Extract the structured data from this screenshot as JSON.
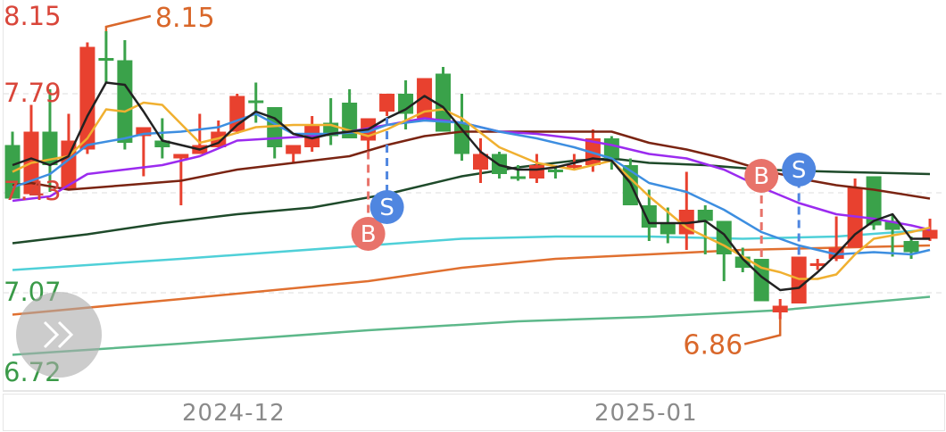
{
  "chart_data": {
    "type": "candlestick",
    "title": "",
    "xlabel": "",
    "ylabel": "",
    "ylim": [
      6.72,
      8.15
    ],
    "y_tick_labels": [
      "8.15",
      "7.79",
      "7.43",
      "7.07",
      "6.72"
    ],
    "x_tick_labels": [
      {
        "label": "2024-12",
        "index": 13
      },
      {
        "label": "2025-01",
        "index": 35
      }
    ],
    "grid": true,
    "colors": {
      "up": "#e8412f",
      "down": "#3aa24a",
      "high_label": "#d9672a",
      "axis_up": "#d9463a",
      "axis_down": "#3a9a48"
    },
    "candles": [
      {
        "o": 7.64,
        "h": 7.7,
        "l": 7.4,
        "c": 7.4
      },
      {
        "o": 7.42,
        "h": 7.82,
        "l": 7.42,
        "c": 7.7
      },
      {
        "o": 7.7,
        "h": 7.89,
        "l": 7.43,
        "c": 7.55
      },
      {
        "o": 7.44,
        "h": 7.78,
        "l": 7.44,
        "c": 7.66
      },
      {
        "o": 7.62,
        "h": 8.1,
        "l": 7.6,
        "c": 8.08
      },
      {
        "o": 8.03,
        "h": 8.15,
        "l": 7.92,
        "c": 8.02
      },
      {
        "o": 8.02,
        "h": 8.11,
        "l": 7.62,
        "c": 7.65
      },
      {
        "o": 7.68,
        "h": 7.72,
        "l": 7.5,
        "c": 7.72
      },
      {
        "o": 7.66,
        "h": 7.76,
        "l": 7.58,
        "c": 7.63
      },
      {
        "o": 7.58,
        "h": 7.6,
        "l": 7.37,
        "c": 7.6
      },
      {
        "o": 7.6,
        "h": 7.78,
        "l": 7.6,
        "c": 7.64
      },
      {
        "o": 7.63,
        "h": 7.75,
        "l": 7.63,
        "c": 7.7
      },
      {
        "o": 7.7,
        "h": 7.87,
        "l": 7.69,
        "c": 7.86
      },
      {
        "o": 7.84,
        "h": 7.92,
        "l": 7.74,
        "c": 7.83
      },
      {
        "o": 7.81,
        "h": 7.81,
        "l": 7.58,
        "c": 7.63
      },
      {
        "o": 7.6,
        "h": 7.64,
        "l": 7.56,
        "c": 7.64
      },
      {
        "o": 7.63,
        "h": 7.77,
        "l": 7.61,
        "c": 7.73
      },
      {
        "o": 7.74,
        "h": 7.85,
        "l": 7.64,
        "c": 7.68
      },
      {
        "o": 7.83,
        "h": 7.89,
        "l": 7.67,
        "c": 7.67
      },
      {
        "o": 7.66,
        "h": 7.76,
        "l": 7.62,
        "c": 7.76
      },
      {
        "o": 7.79,
        "h": 7.87,
        "l": 7.77,
        "c": 7.87
      },
      {
        "o": 7.87,
        "h": 7.93,
        "l": 7.71,
        "c": 7.78
      },
      {
        "o": 7.76,
        "h": 7.94,
        "l": 7.76,
        "c": 7.94
      },
      {
        "o": 7.96,
        "h": 7.99,
        "l": 7.7,
        "c": 7.7
      },
      {
        "o": 7.74,
        "h": 7.87,
        "l": 7.57,
        "c": 7.6
      },
      {
        "o": 7.53,
        "h": 7.67,
        "l": 7.47,
        "c": 7.6
      },
      {
        "o": 7.6,
        "h": 7.61,
        "l": 7.49,
        "c": 7.51
      },
      {
        "o": 7.5,
        "h": 7.55,
        "l": 7.48,
        "c": 7.49
      },
      {
        "o": 7.49,
        "h": 7.6,
        "l": 7.47,
        "c": 7.55
      },
      {
        "o": 7.53,
        "h": 7.55,
        "l": 7.49,
        "c": 7.52
      },
      {
        "o": 7.55,
        "h": 7.6,
        "l": 7.53,
        "c": 7.55
      },
      {
        "o": 7.55,
        "h": 7.71,
        "l": 7.52,
        "c": 7.67
      },
      {
        "o": 7.67,
        "h": 7.68,
        "l": 7.53,
        "c": 7.58
      },
      {
        "o": 7.55,
        "h": 7.58,
        "l": 7.37,
        "c": 7.37
      },
      {
        "o": 7.37,
        "h": 7.44,
        "l": 7.21,
        "c": 7.27
      },
      {
        "o": 7.29,
        "h": 7.36,
        "l": 7.2,
        "c": 7.24
      },
      {
        "o": 7.24,
        "h": 7.52,
        "l": 7.17,
        "c": 7.35
      },
      {
        "o": 7.35,
        "h": 7.37,
        "l": 7.15,
        "c": 7.3
      },
      {
        "o": 7.3,
        "h": 7.3,
        "l": 7.03,
        "c": 7.15
      },
      {
        "o": 7.14,
        "h": 7.18,
        "l": 7.07,
        "c": 7.09
      },
      {
        "o": 7.13,
        "h": 7.13,
        "l": 6.94,
        "c": 6.94
      },
      {
        "o": 6.89,
        "h": 6.95,
        "l": 6.86,
        "c": 6.92
      },
      {
        "o": 6.93,
        "h": 7.14,
        "l": 6.93,
        "c": 7.14
      },
      {
        "o": 7.11,
        "h": 7.13,
        "l": 7.08,
        "c": 7.11
      },
      {
        "o": 7.13,
        "h": 7.32,
        "l": 7.12,
        "c": 7.18
      },
      {
        "o": 7.18,
        "h": 7.49,
        "l": 7.18,
        "c": 7.45
      },
      {
        "o": 7.5,
        "h": 7.5,
        "l": 7.26,
        "c": 7.28
      },
      {
        "o": 7.3,
        "h": 7.33,
        "l": 7.14,
        "c": 7.26
      },
      {
        "o": 7.21,
        "h": 7.23,
        "l": 7.13,
        "c": 7.16
      },
      {
        "o": 7.22,
        "h": 7.31,
        "l": 7.21,
        "c": 7.26
      }
    ],
    "lines": [
      {
        "color": "#222222",
        "points": [
          [
            1,
            7.55
          ],
          [
            2,
            7.58
          ],
          [
            3,
            7.55
          ],
          [
            4,
            7.59
          ],
          [
            5,
            7.77
          ],
          [
            6,
            7.92
          ],
          [
            7,
            7.91
          ],
          [
            8,
            7.79
          ],
          [
            9,
            7.66
          ],
          [
            10,
            7.64
          ],
          [
            11,
            7.62
          ],
          [
            12,
            7.65
          ],
          [
            13,
            7.73
          ],
          [
            14,
            7.79
          ],
          [
            15,
            7.76
          ],
          [
            16,
            7.69
          ],
          [
            17,
            7.67
          ],
          [
            18,
            7.69
          ],
          [
            19,
            7.7
          ],
          [
            20,
            7.71
          ],
          [
            21,
            7.76
          ],
          [
            22,
            7.8
          ],
          [
            23,
            7.86
          ],
          [
            24,
            7.81
          ],
          [
            25,
            7.71
          ],
          [
            26,
            7.61
          ],
          [
            27,
            7.55
          ],
          [
            28,
            7.53
          ],
          [
            29,
            7.53
          ],
          [
            30,
            7.54
          ],
          [
            31,
            7.56
          ],
          [
            32,
            7.58
          ],
          [
            33,
            7.57
          ],
          [
            34,
            7.47
          ],
          [
            35,
            7.29
          ],
          [
            36,
            7.29
          ],
          [
            37,
            7.29
          ],
          [
            38,
            7.3
          ],
          [
            39,
            7.24
          ],
          [
            40,
            7.13
          ],
          [
            41,
            7.05
          ],
          [
            42,
            6.99
          ],
          [
            43,
            7.0
          ],
          [
            44,
            7.07
          ],
          [
            45,
            7.15
          ],
          [
            46,
            7.24
          ],
          [
            47,
            7.3
          ],
          [
            48,
            7.33
          ],
          [
            49,
            7.22
          ],
          [
            50,
            7.22
          ]
        ]
      },
      {
        "color": "#f0b030",
        "points": [
          [
            1,
            7.52
          ],
          [
            2,
            7.56
          ],
          [
            4,
            7.59
          ],
          [
            5,
            7.67
          ],
          [
            6,
            7.8
          ],
          [
            7,
            7.79
          ],
          [
            8,
            7.83
          ],
          [
            9,
            7.82
          ],
          [
            11,
            7.65
          ],
          [
            12,
            7.67
          ],
          [
            14,
            7.72
          ],
          [
            16,
            7.73
          ],
          [
            18,
            7.73
          ],
          [
            20,
            7.68
          ],
          [
            21,
            7.71
          ],
          [
            23,
            7.79
          ],
          [
            24,
            7.8
          ],
          [
            25,
            7.76
          ],
          [
            27,
            7.63
          ],
          [
            29,
            7.56
          ],
          [
            31,
            7.53
          ],
          [
            33,
            7.57
          ],
          [
            35,
            7.41
          ],
          [
            37,
            7.27
          ],
          [
            39,
            7.19
          ],
          [
            41,
            7.09
          ],
          [
            42,
            7.07
          ],
          [
            43,
            7.04
          ],
          [
            44,
            7.04
          ],
          [
            45,
            7.06
          ],
          [
            46,
            7.15
          ],
          [
            47,
            7.22
          ],
          [
            49,
            7.25
          ],
          [
            50,
            7.27
          ]
        ]
      },
      {
        "color": "#3d8ee0",
        "points": [
          [
            1,
            7.45
          ],
          [
            3,
            7.51
          ],
          [
            5,
            7.64
          ],
          [
            7,
            7.67
          ],
          [
            8,
            7.69
          ],
          [
            10,
            7.7
          ],
          [
            12,
            7.72
          ],
          [
            13,
            7.75
          ],
          [
            14,
            7.78
          ],
          [
            16,
            7.69
          ],
          [
            18,
            7.69
          ],
          [
            20,
            7.7
          ],
          [
            21,
            7.73
          ],
          [
            23,
            7.75
          ],
          [
            25,
            7.74
          ],
          [
            27,
            7.7
          ],
          [
            29,
            7.67
          ],
          [
            31,
            7.63
          ],
          [
            33,
            7.58
          ],
          [
            35,
            7.47
          ],
          [
            37,
            7.43
          ],
          [
            39,
            7.35
          ],
          [
            41,
            7.25
          ],
          [
            43,
            7.19
          ],
          [
            45,
            7.15
          ],
          [
            47,
            7.16
          ],
          [
            49,
            7.15
          ],
          [
            50,
            7.17
          ]
        ]
      },
      {
        "color": "#9b2bef",
        "points": [
          [
            1,
            7.39
          ],
          [
            3,
            7.41
          ],
          [
            5,
            7.51
          ],
          [
            7,
            7.53
          ],
          [
            9,
            7.55
          ],
          [
            11,
            7.59
          ],
          [
            13,
            7.66
          ],
          [
            15,
            7.67
          ],
          [
            17,
            7.68
          ],
          [
            19,
            7.7
          ],
          [
            21,
            7.73
          ],
          [
            23,
            7.76
          ],
          [
            25,
            7.74
          ],
          [
            27,
            7.7
          ],
          [
            29,
            7.69
          ],
          [
            31,
            7.67
          ],
          [
            33,
            7.64
          ],
          [
            35,
            7.6
          ],
          [
            37,
            7.58
          ],
          [
            39,
            7.53
          ],
          [
            41,
            7.45
          ],
          [
            43,
            7.38
          ],
          [
            45,
            7.33
          ],
          [
            47,
            7.31
          ],
          [
            49,
            7.28
          ],
          [
            50,
            7.26
          ]
        ]
      },
      {
        "color": "#7a2412",
        "points": [
          [
            1,
            7.46
          ],
          [
            2,
            7.47
          ],
          [
            4,
            7.44
          ],
          [
            7,
            7.46
          ],
          [
            10,
            7.48
          ],
          [
            13,
            7.53
          ],
          [
            16,
            7.56
          ],
          [
            19,
            7.59
          ],
          [
            21,
            7.64
          ],
          [
            23,
            7.68
          ],
          [
            25,
            7.7
          ],
          [
            28,
            7.7
          ],
          [
            31,
            7.7
          ],
          [
            33,
            7.7
          ],
          [
            35,
            7.65
          ],
          [
            37,
            7.62
          ],
          [
            39,
            7.58
          ],
          [
            41,
            7.53
          ],
          [
            43,
            7.49
          ],
          [
            45,
            7.46
          ],
          [
            47,
            7.44
          ],
          [
            50,
            7.4
          ]
        ]
      },
      {
        "color": "#1e4a2a",
        "points": [
          [
            1,
            7.2
          ],
          [
            5,
            7.24
          ],
          [
            9,
            7.29
          ],
          [
            13,
            7.33
          ],
          [
            17,
            7.36
          ],
          [
            21,
            7.42
          ],
          [
            25,
            7.5
          ],
          [
            28,
            7.54
          ],
          [
            31,
            7.57
          ],
          [
            33,
            7.58
          ],
          [
            35,
            7.56
          ],
          [
            38,
            7.55
          ],
          [
            41,
            7.53
          ],
          [
            45,
            7.52
          ],
          [
            50,
            7.51
          ]
        ]
      },
      {
        "color": "#4fd0d8",
        "points": [
          [
            1,
            7.08
          ],
          [
            10,
            7.13
          ],
          [
            20,
            7.19
          ],
          [
            25,
            7.22
          ],
          [
            30,
            7.23
          ],
          [
            35,
            7.23
          ],
          [
            40,
            7.22
          ],
          [
            45,
            7.23
          ],
          [
            50,
            7.26
          ]
        ]
      },
      {
        "color": "#e07030",
        "points": [
          [
            1,
            6.88
          ],
          [
            10,
            6.95
          ],
          [
            20,
            7.03
          ],
          [
            25,
            7.09
          ],
          [
            30,
            7.13
          ],
          [
            35,
            7.15
          ],
          [
            40,
            7.17
          ],
          [
            45,
            7.18
          ],
          [
            50,
            7.19
          ]
        ]
      },
      {
        "color": "#5db88a",
        "points": [
          [
            1,
            6.7
          ],
          [
            10,
            6.75
          ],
          [
            20,
            6.81
          ],
          [
            28,
            6.85
          ],
          [
            35,
            6.87
          ],
          [
            42,
            6.9
          ],
          [
            50,
            6.96
          ]
        ]
      }
    ],
    "annotations": [
      {
        "text": "8.15",
        "index": 6,
        "price": 8.15,
        "kind": "max"
      },
      {
        "text": "6.86",
        "index": 42,
        "price": 6.86,
        "kind": "min"
      }
    ],
    "signals": [
      {
        "text": "B",
        "index": 20,
        "color": "#e8736a"
      },
      {
        "text": "S",
        "index": 21,
        "color": "#4f86e0"
      },
      {
        "text": "B",
        "index": 41,
        "color": "#e8736a"
      },
      {
        "text": "S",
        "index": 43,
        "color": "#4f86e0"
      }
    ]
  },
  "controls": {
    "expand_icon": "double-chevron-right-icon"
  }
}
